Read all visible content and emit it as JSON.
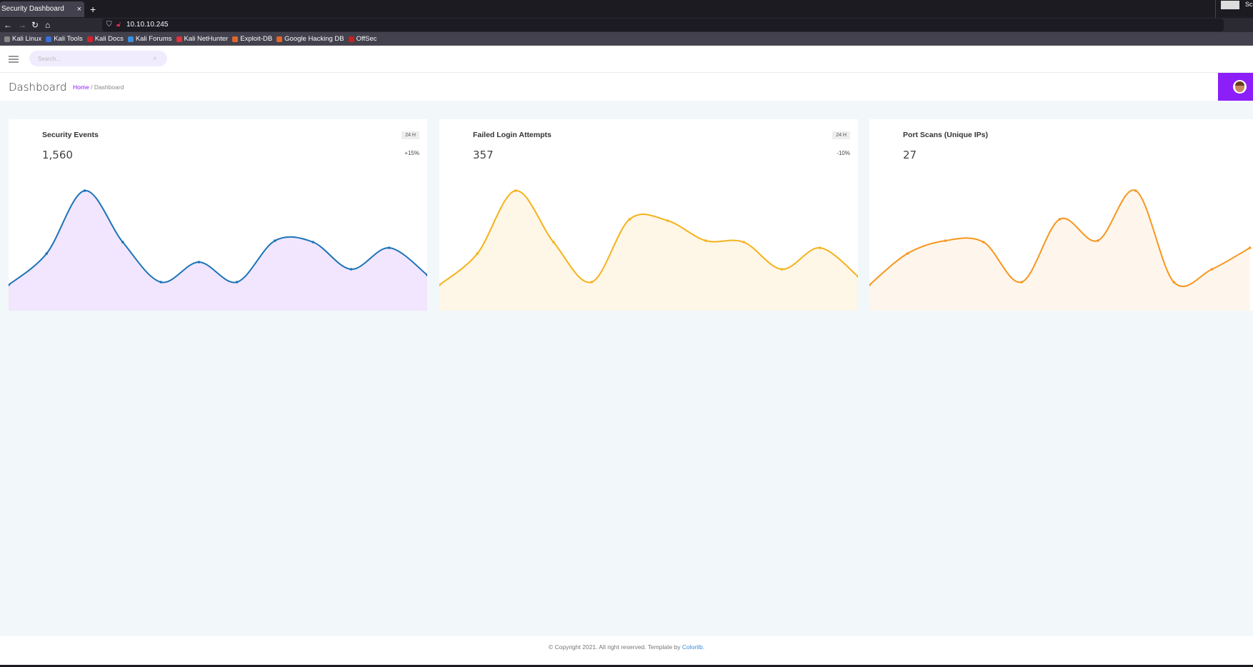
{
  "browser": {
    "tab_title": "Security Dashboard",
    "close": "×",
    "new_tab": "+",
    "url": "10.10.10.245",
    "overlay_text": "Scr",
    "bookmarks": [
      {
        "label": "Kali Linux",
        "color": "#888888"
      },
      {
        "label": "Kali Tools",
        "color": "#3b6fd8"
      },
      {
        "label": "Kali Docs",
        "color": "#d8202a"
      },
      {
        "label": "Kali Forums",
        "color": "#3b8fe0"
      },
      {
        "label": "Kali NetHunter",
        "color": "#e0303a"
      },
      {
        "label": "Exploit-DB",
        "color": "#e0662a"
      },
      {
        "label": "Google Hacking DB",
        "color": "#e0662a"
      },
      {
        "label": "OffSec",
        "color": "#c82020"
      }
    ]
  },
  "header": {
    "search_placeholder": "Search..."
  },
  "page": {
    "title": "Dashboard",
    "breadcrumb": [
      "Home",
      "Dashboard"
    ],
    "separator": "/"
  },
  "chart_data": [
    {
      "type": "area",
      "title": "Security Events",
      "value": "1,560",
      "badge": "24 H",
      "change": "+15%",
      "color": "#1a73b8",
      "fill": "#f1e6fd",
      "ylim": [
        0,
        134
      ],
      "values": [
        18,
        40,
        84,
        48,
        20,
        34,
        20,
        49,
        48,
        29,
        44,
        25
      ]
    },
    {
      "type": "area",
      "title": "Failed Login Attempts",
      "value": "357",
      "badge": "24 H",
      "change": "-10%",
      "color": "#f5b21b",
      "fill": "#fef6e6",
      "ylim": [
        0,
        134
      ],
      "values": [
        18,
        40,
        84,
        48,
        20,
        64,
        63,
        49,
        48,
        29,
        44,
        24
      ]
    },
    {
      "type": "area",
      "title": "Port Scans (Unique IPs)",
      "value": "27",
      "color": "#f7961e",
      "fill": "#fef6ec",
      "ylim": [
        0,
        134
      ],
      "values": [
        18,
        40,
        49,
        48,
        20,
        64,
        49,
        84,
        20,
        29,
        44
      ]
    }
  ],
  "footer": {
    "text": "© Copyright 2021. All right reserved. Template by ",
    "link": "Colorlib",
    "end": "."
  }
}
